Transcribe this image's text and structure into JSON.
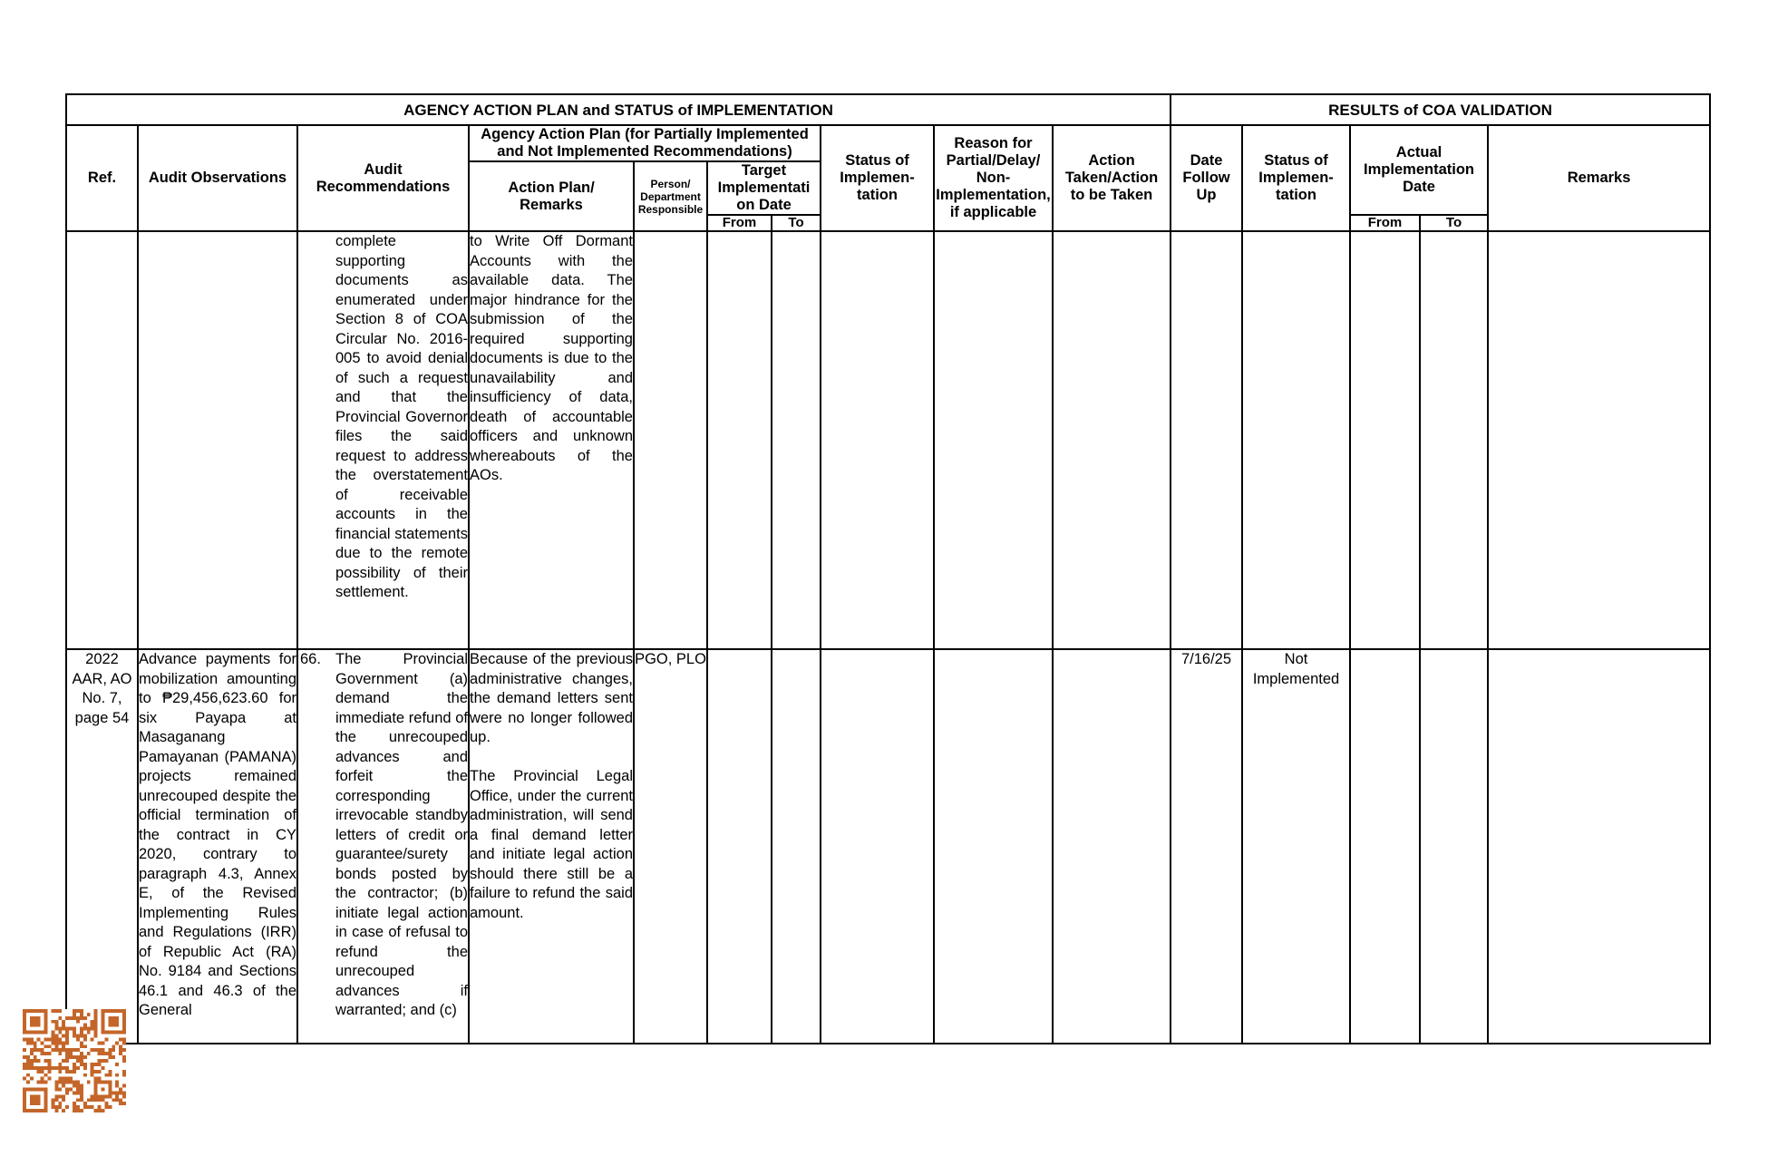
{
  "table": {
    "header": {
      "agency_title": "AGENCY ACTION PLAN and STATUS of IMPLEMENTATION",
      "coa_title": "RESULTS of COA VALIDATION",
      "agency_plan_group": "Agency Action Plan (for Partially Implemented\nand Not Implemented Recommendations)",
      "cols": {
        "ref": "Ref.",
        "audit_observations": "Audit Observations",
        "audit_recommendations": "Audit\nRecommendations",
        "action_plan_remarks": "Action Plan/\nRemarks",
        "person_department": "Person/\nDepartment\nResponsible",
        "target_implementation_date": "Target\nImplementati\non Date",
        "status_of_implementation": "Status of\nImplemen-\ntation",
        "reason": "Reason for\nPartial/Delay/\nNon-\nImplementation,\nif applicable",
        "action_taken": "Action\nTaken/Action\nto be Taken",
        "date_follow_up": "Date\nFollow\nUp",
        "coa_status_of_implementation": "Status of\nImplemen-\ntation",
        "actual_implementation_date": "Actual\nImplementation\nDate",
        "remarks": "Remarks",
        "from": "From",
        "to": "To"
      }
    },
    "rows": [
      {
        "ref": "",
        "audit_observations": "",
        "rec_no": "",
        "audit_recommendations": "complete supporting documents as enumerated under Section 8 of COA Circular No. 2016-005 to avoid denial of such a request and that the Provincial Governor files the said request to address the overstatement of receivable accounts in the financial statements due to the remote possibility of their settlement.",
        "action_plan_remarks": "to Write Off Dormant Accounts with the available data. The major hindrance for the submission of the required supporting documents is due to the unavailability and insufficiency of data, death of accountable officers and unknown whereabouts of the AOs.",
        "person_department": "",
        "target_from": "",
        "target_to": "",
        "status_of_implementation": "",
        "reason": "",
        "action_taken": "",
        "date_follow_up": "",
        "coa_status": "",
        "actual_from": "",
        "actual_to": "",
        "remarks": ""
      },
      {
        "ref": "2022 AAR, AO No. 7, page 54",
        "audit_observations": "Advance payments for mobilization amounting to ₱29,456,623.60 for six Payapa at Masaganang Pamayanan (PAMANA) projects remained unrecouped despite the official termination of the contract in CY 2020, contrary to paragraph 4.3, Annex E, of the Revised Implementing Rules and Regulations (IRR) of Republic Act (RA) No. 9184 and Sections 46.1 and 46.3 of the General",
        "rec_no": "66.",
        "audit_recommendations": "The Provincial Government (a) demand the immediate refund of the unrecouped advances and forfeit the corresponding irrevocable standby letters of credit or guarantee/surety bonds posted by the contractor; (b) initiate legal action in case of refusal to refund the unrecouped advances if warranted; and (c)",
        "action_plan_remarks": "Because of the previous administrative changes, the demand letters sent were no longer followed up.\n\nThe Provincial Legal Office, under the current administration, will send a final demand letter and initiate legal action should there still be a failure to refund the said amount.",
        "person_department": "PGO, PLO",
        "target_from": "",
        "target_to": "",
        "status_of_implementation": "",
        "reason": "",
        "action_taken": "",
        "date_follow_up": "7/16/25",
        "coa_status": "Not Implemented",
        "actual_from": "",
        "actual_to": "",
        "remarks": ""
      }
    ]
  },
  "qr": {
    "color": "#c4662a"
  }
}
